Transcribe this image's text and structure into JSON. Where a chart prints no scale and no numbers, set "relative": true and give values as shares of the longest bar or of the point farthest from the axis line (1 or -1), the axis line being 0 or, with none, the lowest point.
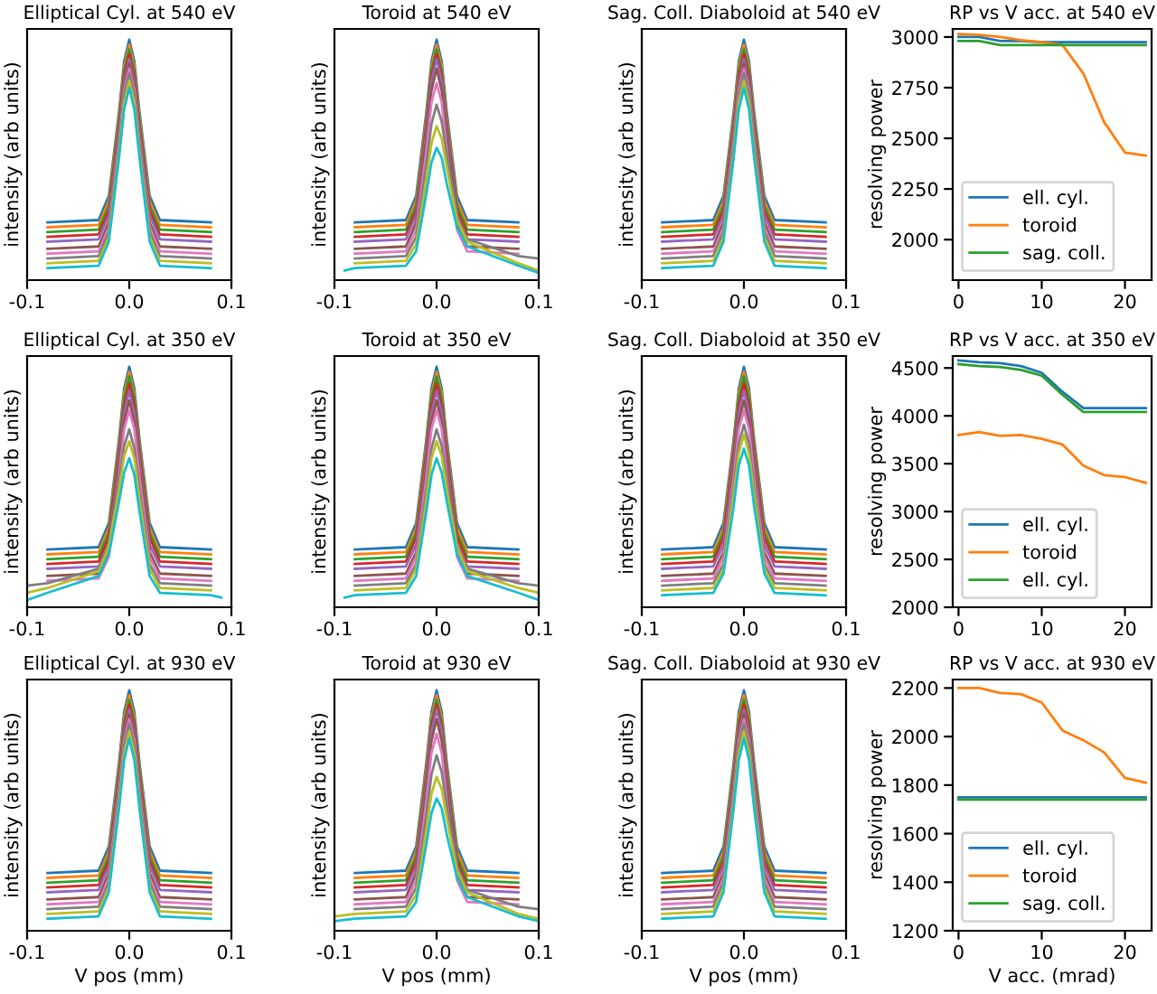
{
  "chart_data": [
    {
      "type": "line",
      "title": "Elliptical Cyl. at 540 eV",
      "ylabel": "intensity (arb units)",
      "relative": true,
      "tick_labels": "x",
      "xlim": [
        -0.1,
        0.1
      ],
      "xticks": [
        {
          "value": -0.1,
          "label": "-0.1"
        },
        {
          "value": 0,
          "label": "0.0"
        },
        {
          "value": 0.1,
          "label": "0.1"
        }
      ],
      "x": [
        -0.08,
        -0.03,
        -0.02,
        -0.01,
        -0.005,
        0,
        0.005,
        0.01,
        0.02,
        0.03,
        0.08
      ],
      "series": [
        {
          "color": "#1f77b4",
          "values": [
            0.24,
            0.25,
            0.35,
            0.7,
            0.91,
            1.0,
            0.91,
            0.7,
            0.35,
            0.25,
            0.24
          ]
        },
        {
          "color": "#ff7f0e",
          "values": [
            0.22,
            0.23,
            0.33,
            0.68,
            0.89,
            0.98,
            0.89,
            0.68,
            0.33,
            0.23,
            0.22
          ]
        },
        {
          "color": "#2ca02c",
          "values": [
            0.2,
            0.21,
            0.31,
            0.66,
            0.87,
            0.96,
            0.87,
            0.66,
            0.31,
            0.21,
            0.2
          ]
        },
        {
          "color": "#d62728",
          "values": [
            0.18,
            0.19,
            0.29,
            0.64,
            0.85,
            0.94,
            0.85,
            0.64,
            0.29,
            0.19,
            0.18
          ]
        },
        {
          "color": "#9467bd",
          "values": [
            0.16,
            0.17,
            0.27,
            0.62,
            0.83,
            0.92,
            0.83,
            0.62,
            0.27,
            0.17,
            0.16
          ]
        },
        {
          "color": "#8c564b",
          "values": [
            0.13,
            0.14,
            0.24,
            0.6,
            0.81,
            0.9,
            0.81,
            0.6,
            0.24,
            0.14,
            0.13
          ]
        },
        {
          "color": "#e377c2",
          "values": [
            0.11,
            0.12,
            0.22,
            0.58,
            0.79,
            0.88,
            0.79,
            0.58,
            0.22,
            0.12,
            0.11
          ]
        },
        {
          "color": "#7f7f7f",
          "values": [
            0.09,
            0.1,
            0.2,
            0.56,
            0.77,
            0.86,
            0.77,
            0.56,
            0.2,
            0.1,
            0.09
          ]
        },
        {
          "color": "#bcbd22",
          "values": [
            0.07,
            0.08,
            0.18,
            0.53,
            0.74,
            0.83,
            0.74,
            0.53,
            0.18,
            0.08,
            0.07
          ]
        },
        {
          "color": "#17becf",
          "values": [
            0.05,
            0.06,
            0.16,
            0.51,
            0.71,
            0.8,
            0.71,
            0.51,
            0.16,
            0.06,
            0.05
          ]
        }
      ]
    },
    {
      "type": "line",
      "title": "Toroid at 540 eV",
      "ylabel": "intensity (arb units)",
      "relative": true,
      "tick_labels": "x",
      "xlim": [
        -0.1,
        0.1
      ],
      "xticks": [
        {
          "value": -0.1,
          "label": "-0.1"
        },
        {
          "value": 0,
          "label": "0.0"
        },
        {
          "value": 0.1,
          "label": "0.1"
        }
      ],
      "x": [
        -0.09,
        -0.08,
        -0.03,
        -0.02,
        -0.01,
        -0.005,
        0,
        0.005,
        0.01,
        0.02,
        0.03,
        0.08,
        0.1
      ],
      "series": [
        {
          "color": "#1f77b4",
          "values": [
            null,
            0.24,
            0.25,
            0.35,
            0.7,
            0.91,
            1.0,
            0.91,
            0.7,
            0.35,
            0.25,
            0.24,
            null
          ]
        },
        {
          "color": "#ff7f0e",
          "values": [
            null,
            0.22,
            0.23,
            0.33,
            0.68,
            0.89,
            0.98,
            0.89,
            0.68,
            0.33,
            0.23,
            0.22,
            null
          ]
        },
        {
          "color": "#2ca02c",
          "values": [
            null,
            0.2,
            0.21,
            0.31,
            0.66,
            0.87,
            0.96,
            0.87,
            0.66,
            0.31,
            0.21,
            0.2,
            null
          ]
        },
        {
          "color": "#d62728",
          "values": [
            null,
            0.18,
            0.19,
            0.29,
            0.64,
            0.85,
            0.94,
            0.85,
            0.64,
            0.29,
            0.19,
            0.18,
            null
          ]
        },
        {
          "color": "#9467bd",
          "values": [
            null,
            0.16,
            0.17,
            0.27,
            0.62,
            0.83,
            0.92,
            0.83,
            0.62,
            0.27,
            0.17,
            0.16,
            null
          ]
        },
        {
          "color": "#8c564b",
          "values": [
            null,
            0.13,
            0.14,
            0.24,
            0.59,
            0.79,
            0.88,
            0.79,
            0.59,
            0.24,
            0.14,
            0.13,
            null
          ]
        },
        {
          "color": "#e377c2",
          "values": [
            null,
            0.11,
            0.12,
            0.21,
            0.54,
            0.74,
            0.82,
            0.74,
            0.54,
            0.21,
            0.12,
            0.11,
            null
          ]
        },
        {
          "color": "#7f7f7f",
          "values": [
            null,
            0.09,
            0.1,
            0.18,
            0.48,
            0.65,
            0.73,
            0.66,
            0.52,
            0.27,
            0.17,
            0.1,
            0.09
          ]
        },
        {
          "color": "#bcbd22",
          "values": [
            null,
            0.07,
            0.08,
            0.15,
            0.42,
            0.57,
            0.64,
            0.59,
            0.47,
            0.25,
            0.16,
            0.07,
            0.04
          ]
        },
        {
          "color": "#17becf",
          "values": [
            0.04,
            0.05,
            0.06,
            0.12,
            0.36,
            0.49,
            0.55,
            0.51,
            0.4,
            0.22,
            0.14,
            0.06,
            0.03
          ]
        }
      ]
    },
    {
      "type": "line",
      "title": "Sag. Coll. Diaboloid at 540 eV",
      "ylabel": "intensity (arb units)",
      "relative": true,
      "tick_labels": "x",
      "xlim": [
        -0.1,
        0.1
      ],
      "xticks": [
        {
          "value": -0.1,
          "label": "-0.1"
        },
        {
          "value": 0,
          "label": "0.0"
        },
        {
          "value": 0.1,
          "label": "0.1"
        }
      ],
      "x": [
        -0.08,
        -0.03,
        -0.02,
        -0.01,
        -0.005,
        0,
        0.005,
        0.01,
        0.02,
        0.03,
        0.08
      ],
      "series": [
        {
          "color": "#1f77b4",
          "values": [
            0.24,
            0.25,
            0.35,
            0.7,
            0.91,
            1.0,
            0.91,
            0.7,
            0.35,
            0.25,
            0.24
          ]
        },
        {
          "color": "#ff7f0e",
          "values": [
            0.22,
            0.23,
            0.33,
            0.68,
            0.89,
            0.98,
            0.89,
            0.68,
            0.33,
            0.23,
            0.22
          ]
        },
        {
          "color": "#2ca02c",
          "values": [
            0.2,
            0.21,
            0.31,
            0.66,
            0.87,
            0.96,
            0.87,
            0.66,
            0.31,
            0.21,
            0.2
          ]
        },
        {
          "color": "#d62728",
          "values": [
            0.18,
            0.19,
            0.29,
            0.64,
            0.85,
            0.94,
            0.85,
            0.64,
            0.29,
            0.19,
            0.18
          ]
        },
        {
          "color": "#9467bd",
          "values": [
            0.16,
            0.17,
            0.27,
            0.62,
            0.83,
            0.92,
            0.83,
            0.62,
            0.27,
            0.17,
            0.16
          ]
        },
        {
          "color": "#8c564b",
          "values": [
            0.13,
            0.14,
            0.24,
            0.6,
            0.81,
            0.9,
            0.81,
            0.6,
            0.24,
            0.14,
            0.13
          ]
        },
        {
          "color": "#e377c2",
          "values": [
            0.11,
            0.12,
            0.22,
            0.58,
            0.79,
            0.88,
            0.79,
            0.58,
            0.22,
            0.12,
            0.11
          ]
        },
        {
          "color": "#7f7f7f",
          "values": [
            0.09,
            0.1,
            0.2,
            0.56,
            0.77,
            0.86,
            0.77,
            0.56,
            0.2,
            0.1,
            0.09
          ]
        },
        {
          "color": "#bcbd22",
          "values": [
            0.07,
            0.08,
            0.18,
            0.53,
            0.74,
            0.83,
            0.74,
            0.53,
            0.18,
            0.08,
            0.07
          ]
        },
        {
          "color": "#17becf",
          "values": [
            0.05,
            0.06,
            0.16,
            0.51,
            0.71,
            0.8,
            0.71,
            0.51,
            0.16,
            0.06,
            0.05
          ]
        }
      ]
    },
    {
      "type": "line",
      "title": "RP vs V acc. at 540 eV",
      "ylabel": "resolving power",
      "legend": "bottom left",
      "xlim": [
        -0.7,
        23.2
      ],
      "xticks": [
        0,
        10,
        20
      ],
      "ylim": [
        1800,
        3040
      ],
      "yticks": [
        2000,
        2250,
        2500,
        2750,
        3000
      ],
      "x": [
        0,
        2.5,
        5,
        7.5,
        10,
        12.5,
        15,
        17.5,
        20,
        22.5
      ],
      "series": [
        {
          "name": "ell. cyl.",
          "color": "#1f77b4",
          "values": [
            3000,
            3000,
            2980,
            2980,
            2975,
            2975,
            2975,
            2975,
            2975,
            2975
          ]
        },
        {
          "name": "toroid",
          "color": "#ff7f0e",
          "values": [
            3015,
            3010,
            3000,
            2985,
            2975,
            2960,
            2820,
            2580,
            2430,
            2415
          ]
        },
        {
          "name": "sag. coll.",
          "color": "#2ca02c",
          "values": [
            2980,
            2980,
            2960,
            2960,
            2960,
            2960,
            2960,
            2960,
            2960,
            2960
          ]
        }
      ]
    },
    {
      "type": "line",
      "title": "Elliptical Cyl. at 350 eV",
      "ylabel": "intensity (arb units)",
      "relative": true,
      "tick_labels": "x",
      "xlim": [
        -0.1,
        0.1
      ],
      "xticks": [
        {
          "value": -0.1,
          "label": "-0.1"
        },
        {
          "value": 0,
          "label": "0.0"
        },
        {
          "value": 0.1,
          "label": "0.1"
        }
      ],
      "x": [
        -0.1,
        -0.08,
        -0.03,
        -0.02,
        -0.01,
        -0.005,
        0,
        0.005,
        0.01,
        0.02,
        0.03,
        0.08,
        0.09
      ],
      "series": [
        {
          "color": "#1f77b4",
          "values": [
            null,
            0.24,
            0.25,
            0.35,
            0.7,
            0.91,
            1.0,
            0.91,
            0.7,
            0.35,
            0.25,
            0.24,
            null
          ]
        },
        {
          "color": "#ff7f0e",
          "values": [
            null,
            0.22,
            0.23,
            0.33,
            0.68,
            0.89,
            0.98,
            0.89,
            0.68,
            0.33,
            0.23,
            0.22,
            null
          ]
        },
        {
          "color": "#2ca02c",
          "values": [
            null,
            0.2,
            0.21,
            0.31,
            0.66,
            0.87,
            0.96,
            0.87,
            0.66,
            0.31,
            0.21,
            0.2,
            null
          ]
        },
        {
          "color": "#d62728",
          "values": [
            null,
            0.18,
            0.19,
            0.29,
            0.64,
            0.84,
            0.93,
            0.84,
            0.64,
            0.29,
            0.19,
            0.18,
            null
          ]
        },
        {
          "color": "#9467bd",
          "values": [
            null,
            0.16,
            0.17,
            0.26,
            0.61,
            0.81,
            0.9,
            0.81,
            0.61,
            0.26,
            0.17,
            0.16,
            null
          ]
        },
        {
          "color": "#8c564b",
          "values": [
            null,
            0.13,
            0.14,
            0.23,
            0.58,
            0.77,
            0.86,
            0.77,
            0.58,
            0.23,
            0.14,
            0.13,
            null
          ]
        },
        {
          "color": "#e377c2",
          "values": [
            null,
            0.11,
            0.12,
            0.21,
            0.54,
            0.74,
            0.82,
            0.74,
            0.54,
            0.21,
            0.12,
            0.11,
            null
          ]
        },
        {
          "color": "#7f7f7f",
          "values": [
            0.09,
            0.1,
            0.16,
            0.26,
            0.52,
            0.67,
            0.74,
            0.66,
            0.49,
            0.18,
            0.1,
            0.09,
            null
          ]
        },
        {
          "color": "#bcbd22",
          "values": [
            0.06,
            0.08,
            0.15,
            0.25,
            0.49,
            0.63,
            0.69,
            0.62,
            0.45,
            0.16,
            0.08,
            0.07,
            null
          ]
        },
        {
          "color": "#17becf",
          "values": [
            0.03,
            0.06,
            0.13,
            0.22,
            0.44,
            0.56,
            0.62,
            0.55,
            0.4,
            0.13,
            0.06,
            0.05,
            0.04
          ]
        }
      ]
    },
    {
      "type": "line",
      "title": "Toroid at 350 eV",
      "ylabel": "intensity (arb units)",
      "relative": true,
      "tick_labels": "x",
      "xlim": [
        -0.1,
        0.1
      ],
      "xticks": [
        {
          "value": -0.1,
          "label": "-0.1"
        },
        {
          "value": 0,
          "label": "0.0"
        },
        {
          "value": 0.1,
          "label": "0.1"
        }
      ],
      "x": [
        -0.09,
        -0.08,
        -0.03,
        -0.02,
        -0.01,
        -0.005,
        0,
        0.005,
        0.01,
        0.02,
        0.03,
        0.08,
        0.1
      ],
      "series": [
        {
          "color": "#1f77b4",
          "values": [
            null,
            0.24,
            0.25,
            0.35,
            0.7,
            0.91,
            1.0,
            0.91,
            0.7,
            0.35,
            0.25,
            0.24,
            null
          ]
        },
        {
          "color": "#ff7f0e",
          "values": [
            null,
            0.22,
            0.23,
            0.33,
            0.68,
            0.89,
            0.98,
            0.89,
            0.68,
            0.33,
            0.23,
            0.22,
            null
          ]
        },
        {
          "color": "#2ca02c",
          "values": [
            null,
            0.2,
            0.21,
            0.31,
            0.66,
            0.87,
            0.96,
            0.87,
            0.66,
            0.31,
            0.21,
            0.2,
            null
          ]
        },
        {
          "color": "#d62728",
          "values": [
            null,
            0.18,
            0.19,
            0.29,
            0.64,
            0.84,
            0.93,
            0.84,
            0.64,
            0.29,
            0.19,
            0.18,
            null
          ]
        },
        {
          "color": "#9467bd",
          "values": [
            null,
            0.16,
            0.17,
            0.26,
            0.61,
            0.81,
            0.9,
            0.81,
            0.61,
            0.26,
            0.17,
            0.16,
            null
          ]
        },
        {
          "color": "#8c564b",
          "values": [
            null,
            0.13,
            0.14,
            0.23,
            0.58,
            0.77,
            0.86,
            0.77,
            0.58,
            0.23,
            0.14,
            0.13,
            null
          ]
        },
        {
          "color": "#e377c2",
          "values": [
            null,
            0.11,
            0.12,
            0.21,
            0.54,
            0.74,
            0.82,
            0.74,
            0.54,
            0.21,
            0.12,
            0.11,
            null
          ]
        },
        {
          "color": "#7f7f7f",
          "values": [
            null,
            0.09,
            0.1,
            0.18,
            0.49,
            0.66,
            0.74,
            0.67,
            0.52,
            0.26,
            0.16,
            0.1,
            0.09
          ]
        },
        {
          "color": "#bcbd22",
          "values": [
            null,
            0.07,
            0.08,
            0.16,
            0.45,
            0.62,
            0.69,
            0.63,
            0.49,
            0.25,
            0.15,
            0.08,
            0.06
          ]
        },
        {
          "color": "#17becf",
          "values": [
            0.04,
            0.05,
            0.06,
            0.13,
            0.4,
            0.55,
            0.62,
            0.56,
            0.44,
            0.22,
            0.13,
            0.06,
            0.03
          ]
        }
      ]
    },
    {
      "type": "line",
      "title": "Sag. Coll. Diaboloid at 350 eV",
      "ylabel": "intensity (arb units)",
      "relative": true,
      "tick_labels": "x",
      "xlim": [
        -0.1,
        0.1
      ],
      "xticks": [
        {
          "value": -0.1,
          "label": "-0.1"
        },
        {
          "value": 0,
          "label": "0.0"
        },
        {
          "value": 0.1,
          "label": "0.1"
        }
      ],
      "x": [
        -0.08,
        -0.03,
        -0.02,
        -0.01,
        -0.005,
        0,
        0.005,
        0.01,
        0.02,
        0.03,
        0.08
      ],
      "series": [
        {
          "color": "#1f77b4",
          "values": [
            0.24,
            0.25,
            0.35,
            0.7,
            0.91,
            1.0,
            0.91,
            0.7,
            0.35,
            0.25,
            0.24
          ]
        },
        {
          "color": "#ff7f0e",
          "values": [
            0.22,
            0.23,
            0.33,
            0.68,
            0.89,
            0.98,
            0.89,
            0.68,
            0.33,
            0.23,
            0.22
          ]
        },
        {
          "color": "#2ca02c",
          "values": [
            0.2,
            0.21,
            0.31,
            0.66,
            0.87,
            0.96,
            0.87,
            0.66,
            0.31,
            0.21,
            0.2
          ]
        },
        {
          "color": "#d62728",
          "values": [
            0.18,
            0.19,
            0.29,
            0.64,
            0.84,
            0.93,
            0.84,
            0.64,
            0.29,
            0.19,
            0.18
          ]
        },
        {
          "color": "#9467bd",
          "values": [
            0.16,
            0.17,
            0.26,
            0.61,
            0.81,
            0.9,
            0.81,
            0.61,
            0.26,
            0.17,
            0.16
          ]
        },
        {
          "color": "#8c564b",
          "values": [
            0.13,
            0.14,
            0.23,
            0.58,
            0.77,
            0.86,
            0.77,
            0.58,
            0.23,
            0.14,
            0.13
          ]
        },
        {
          "color": "#e377c2",
          "values": [
            0.11,
            0.12,
            0.21,
            0.54,
            0.74,
            0.82,
            0.74,
            0.54,
            0.21,
            0.12,
            0.11
          ]
        },
        {
          "color": "#7f7f7f",
          "values": [
            0.09,
            0.1,
            0.18,
            0.5,
            0.68,
            0.76,
            0.68,
            0.5,
            0.18,
            0.1,
            0.09
          ]
        },
        {
          "color": "#bcbd22",
          "values": [
            0.07,
            0.08,
            0.16,
            0.47,
            0.64,
            0.72,
            0.64,
            0.47,
            0.16,
            0.08,
            0.07
          ]
        },
        {
          "color": "#17becf",
          "values": [
            0.05,
            0.06,
            0.14,
            0.42,
            0.59,
            0.66,
            0.59,
            0.42,
            0.14,
            0.06,
            0.05
          ]
        }
      ]
    },
    {
      "type": "line",
      "title": "RP vs V acc. at 350 eV",
      "ylabel": "resolving power",
      "legend": "bottom left",
      "xlim": [
        -0.7,
        23.2
      ],
      "xticks": [
        0,
        10,
        20
      ],
      "ylim": [
        2000,
        4625
      ],
      "yticks": [
        2000,
        2500,
        3000,
        3500,
        4000,
        4500
      ],
      "x": [
        0,
        2.5,
        5,
        7.5,
        10,
        12.5,
        15,
        17.5,
        20,
        22.5
      ],
      "series": [
        {
          "name": "ell. cyl.",
          "color": "#1f77b4",
          "values": [
            4580,
            4560,
            4550,
            4520,
            4450,
            4250,
            4080,
            4080,
            4080,
            4080
          ]
        },
        {
          "name": "toroid",
          "color": "#ff7f0e",
          "values": [
            3800,
            3830,
            3790,
            3800,
            3760,
            3700,
            3480,
            3380,
            3360,
            3300
          ]
        },
        {
          "name": "ell. cyl.",
          "color": "#2ca02c",
          "values": [
            4540,
            4520,
            4510,
            4480,
            4420,
            4220,
            4040,
            4040,
            4040,
            4040
          ]
        }
      ]
    },
    {
      "type": "line",
      "title": "Elliptical Cyl. at 930 eV",
      "ylabel": "intensity (arb units)",
      "xlabel": "V pos (mm)",
      "relative": true,
      "tick_labels": "x",
      "xlim": [
        -0.1,
        0.1
      ],
      "xticks": [
        {
          "value": -0.1,
          "label": "-0.1"
        },
        {
          "value": 0,
          "label": "0.0"
        },
        {
          "value": 0.1,
          "label": "0.1"
        }
      ],
      "x": [
        -0.08,
        -0.03,
        -0.02,
        -0.01,
        -0.005,
        0,
        0.005,
        0.01,
        0.02,
        0.03,
        0.08
      ],
      "series": [
        {
          "color": "#1f77b4",
          "values": [
            0.24,
            0.25,
            0.35,
            0.7,
            0.91,
            1.0,
            0.91,
            0.7,
            0.35,
            0.25,
            0.24
          ]
        },
        {
          "color": "#ff7f0e",
          "values": [
            0.22,
            0.23,
            0.33,
            0.68,
            0.89,
            0.98,
            0.89,
            0.68,
            0.33,
            0.23,
            0.22
          ]
        },
        {
          "color": "#2ca02c",
          "values": [
            0.2,
            0.21,
            0.31,
            0.66,
            0.87,
            0.96,
            0.87,
            0.66,
            0.31,
            0.21,
            0.2
          ]
        },
        {
          "color": "#d62728",
          "values": [
            0.18,
            0.19,
            0.29,
            0.64,
            0.85,
            0.94,
            0.85,
            0.64,
            0.29,
            0.19,
            0.18
          ]
        },
        {
          "color": "#9467bd",
          "values": [
            0.16,
            0.17,
            0.27,
            0.62,
            0.83,
            0.92,
            0.83,
            0.62,
            0.27,
            0.17,
            0.16
          ]
        },
        {
          "color": "#8c564b",
          "values": [
            0.13,
            0.14,
            0.24,
            0.6,
            0.81,
            0.9,
            0.81,
            0.6,
            0.24,
            0.14,
            0.13
          ]
        },
        {
          "color": "#e377c2",
          "values": [
            0.11,
            0.12,
            0.22,
            0.58,
            0.79,
            0.88,
            0.79,
            0.58,
            0.22,
            0.12,
            0.11
          ]
        },
        {
          "color": "#7f7f7f",
          "values": [
            0.09,
            0.1,
            0.2,
            0.56,
            0.77,
            0.86,
            0.77,
            0.56,
            0.2,
            0.1,
            0.09
          ]
        },
        {
          "color": "#bcbd22",
          "values": [
            0.07,
            0.08,
            0.18,
            0.53,
            0.74,
            0.83,
            0.74,
            0.53,
            0.18,
            0.08,
            0.07
          ]
        },
        {
          "color": "#17becf",
          "values": [
            0.05,
            0.06,
            0.16,
            0.51,
            0.71,
            0.8,
            0.71,
            0.51,
            0.16,
            0.06,
            0.05
          ]
        }
      ]
    },
    {
      "type": "line",
      "title": "Toroid at 930 eV",
      "ylabel": "intensity (arb units)",
      "xlabel": "V pos (mm)",
      "relative": true,
      "tick_labels": "x",
      "xlim": [
        -0.1,
        0.1
      ],
      "xticks": [
        {
          "value": -0.1,
          "label": "-0.1"
        },
        {
          "value": 0,
          "label": "0.0"
        },
        {
          "value": 0.1,
          "label": "0.1"
        }
      ],
      "x": [
        -0.1,
        -0.08,
        -0.03,
        -0.02,
        -0.01,
        -0.005,
        0,
        0.005,
        0.01,
        0.02,
        0.03,
        0.08,
        0.1
      ],
      "series": [
        {
          "color": "#1f77b4",
          "values": [
            null,
            0.24,
            0.25,
            0.35,
            0.7,
            0.91,
            1.0,
            0.91,
            0.7,
            0.35,
            0.25,
            0.24,
            null
          ]
        },
        {
          "color": "#ff7f0e",
          "values": [
            null,
            0.22,
            0.23,
            0.33,
            0.68,
            0.89,
            0.98,
            0.89,
            0.68,
            0.33,
            0.23,
            0.22,
            null
          ]
        },
        {
          "color": "#2ca02c",
          "values": [
            null,
            0.2,
            0.21,
            0.31,
            0.66,
            0.87,
            0.96,
            0.87,
            0.66,
            0.31,
            0.21,
            0.2,
            null
          ]
        },
        {
          "color": "#d62728",
          "values": [
            null,
            0.18,
            0.19,
            0.29,
            0.64,
            0.85,
            0.94,
            0.85,
            0.64,
            0.29,
            0.19,
            0.18,
            null
          ]
        },
        {
          "color": "#9467bd",
          "values": [
            null,
            0.16,
            0.17,
            0.27,
            0.62,
            0.83,
            0.92,
            0.83,
            0.62,
            0.27,
            0.17,
            0.16,
            null
          ]
        },
        {
          "color": "#8c564b",
          "values": [
            null,
            0.13,
            0.14,
            0.24,
            0.59,
            0.79,
            0.88,
            0.79,
            0.59,
            0.24,
            0.14,
            0.13,
            null
          ]
        },
        {
          "color": "#e377c2",
          "values": [
            null,
            0.11,
            0.12,
            0.21,
            0.54,
            0.74,
            0.82,
            0.74,
            0.54,
            0.21,
            0.12,
            0.11,
            null
          ]
        },
        {
          "color": "#7f7f7f",
          "values": [
            null,
            0.09,
            0.1,
            0.18,
            0.48,
            0.65,
            0.73,
            0.66,
            0.52,
            0.27,
            0.17,
            0.1,
            0.09
          ]
        },
        {
          "color": "#bcbd22",
          "values": [
            0.06,
            0.07,
            0.08,
            0.15,
            0.42,
            0.57,
            0.64,
            0.59,
            0.47,
            0.25,
            0.16,
            0.07,
            0.05
          ]
        },
        {
          "color": "#17becf",
          "values": [
            0.04,
            0.05,
            0.06,
            0.12,
            0.36,
            0.49,
            0.55,
            0.51,
            0.4,
            0.22,
            0.14,
            0.06,
            0.04
          ]
        }
      ]
    },
    {
      "type": "line",
      "title": "Sag. Coll. Diaboloid at 930 eV",
      "ylabel": "intensity (arb units)",
      "xlabel": "V pos (mm)",
      "relative": true,
      "tick_labels": "x",
      "xlim": [
        -0.1,
        0.1
      ],
      "xticks": [
        {
          "value": -0.1,
          "label": "-0.1"
        },
        {
          "value": 0,
          "label": "0.0"
        },
        {
          "value": 0.1,
          "label": "0.1"
        }
      ],
      "x": [
        -0.08,
        -0.03,
        -0.02,
        -0.01,
        -0.005,
        0,
        0.005,
        0.01,
        0.02,
        0.03,
        0.08
      ],
      "series": [
        {
          "color": "#1f77b4",
          "values": [
            0.24,
            0.25,
            0.35,
            0.7,
            0.91,
            1.0,
            0.91,
            0.7,
            0.35,
            0.25,
            0.24
          ]
        },
        {
          "color": "#ff7f0e",
          "values": [
            0.22,
            0.23,
            0.33,
            0.68,
            0.89,
            0.98,
            0.89,
            0.68,
            0.33,
            0.23,
            0.22
          ]
        },
        {
          "color": "#2ca02c",
          "values": [
            0.2,
            0.21,
            0.31,
            0.66,
            0.87,
            0.96,
            0.87,
            0.66,
            0.31,
            0.21,
            0.2
          ]
        },
        {
          "color": "#d62728",
          "values": [
            0.18,
            0.19,
            0.29,
            0.64,
            0.85,
            0.94,
            0.85,
            0.64,
            0.29,
            0.19,
            0.18
          ]
        },
        {
          "color": "#9467bd",
          "values": [
            0.16,
            0.17,
            0.27,
            0.62,
            0.83,
            0.92,
            0.83,
            0.62,
            0.27,
            0.17,
            0.16
          ]
        },
        {
          "color": "#8c564b",
          "values": [
            0.13,
            0.14,
            0.24,
            0.6,
            0.81,
            0.9,
            0.81,
            0.6,
            0.24,
            0.14,
            0.13
          ]
        },
        {
          "color": "#e377c2",
          "values": [
            0.11,
            0.12,
            0.22,
            0.58,
            0.79,
            0.88,
            0.79,
            0.58,
            0.22,
            0.12,
            0.11
          ]
        },
        {
          "color": "#7f7f7f",
          "values": [
            0.09,
            0.1,
            0.2,
            0.56,
            0.77,
            0.86,
            0.77,
            0.56,
            0.2,
            0.1,
            0.09
          ]
        },
        {
          "color": "#bcbd22",
          "values": [
            0.07,
            0.08,
            0.18,
            0.53,
            0.74,
            0.83,
            0.74,
            0.53,
            0.18,
            0.08,
            0.07
          ]
        },
        {
          "color": "#17becf",
          "values": [
            0.05,
            0.06,
            0.16,
            0.51,
            0.71,
            0.8,
            0.71,
            0.51,
            0.16,
            0.06,
            0.05
          ]
        }
      ]
    },
    {
      "type": "line",
      "title": "RP vs V acc. at 930 eV",
      "ylabel": "resolving power",
      "xlabel": "V acc. (mrad)",
      "legend": "bottom left",
      "xlim": [
        -0.7,
        23.2
      ],
      "xticks": [
        0,
        10,
        20
      ],
      "ylim": [
        1200,
        2235
      ],
      "yticks": [
        1200,
        1400,
        1600,
        1800,
        2000,
        2200
      ],
      "x": [
        0,
        2.5,
        5,
        7.5,
        10,
        12.5,
        15,
        17.5,
        20,
        22.5
      ],
      "series": [
        {
          "name": "ell. cyl.",
          "color": "#1f77b4",
          "values": [
            1750,
            1750,
            1750,
            1750,
            1750,
            1750,
            1750,
            1750,
            1750,
            1750
          ]
        },
        {
          "name": "toroid",
          "color": "#ff7f0e",
          "values": [
            2200,
            2200,
            2180,
            2175,
            2140,
            2025,
            1985,
            1935,
            1830,
            1810
          ]
        },
        {
          "name": "sag. coll.",
          "color": "#2ca02c",
          "values": [
            1740,
            1740,
            1740,
            1740,
            1740,
            1740,
            1740,
            1740,
            1740,
            1740
          ]
        }
      ]
    }
  ]
}
